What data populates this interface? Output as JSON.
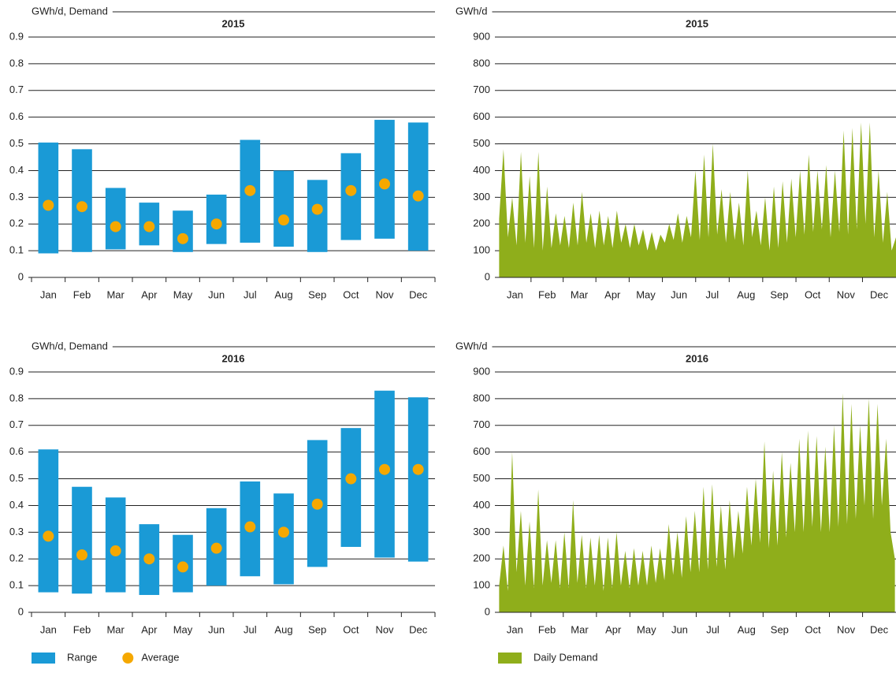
{
  "chart_data": [
    {
      "type": "range",
      "title": "2015",
      "ylabel": "GWh/d, Demand",
      "categories": [
        "Jan",
        "Feb",
        "Mar",
        "Apr",
        "May",
        "Jun",
        "Jul",
        "Aug",
        "Sep",
        "Oct",
        "Nov",
        "Dec"
      ],
      "series": [
        {
          "color": "#1a9ad6",
          "low": [
            0.09,
            0.095,
            0.105,
            0.12,
            0.095,
            0.125,
            0.13,
            0.115,
            0.095,
            0.14,
            0.145,
            0.1
          ],
          "high": [
            0.505,
            0.48,
            0.335,
            0.28,
            0.25,
            0.31,
            0.515,
            0.4,
            0.365,
            0.465,
            0.59,
            0.58
          ]
        },
        {
          "color": "#f5a800",
          "values": [
            0.27,
            0.265,
            0.19,
            0.19,
            0.145,
            0.2,
            0.325,
            0.215,
            0.255,
            0.325,
            0.35,
            0.305
          ]
        }
      ],
      "ylim": [
        0,
        0.9
      ],
      "yticks": [
        0,
        0.1,
        0.2,
        0.3,
        0.4,
        0.5,
        0.6,
        0.7,
        0.8,
        0.9
      ],
      "grid": true
    },
    {
      "type": "area",
      "title": "2015",
      "ylabel": "GWh/d",
      "x": [
        1,
        5,
        9,
        13,
        17,
        21,
        25,
        29,
        33,
        37,
        41,
        45,
        49,
        53,
        57,
        61,
        65,
        69,
        73,
        77,
        81,
        85,
        89,
        93,
        97,
        101,
        105,
        109,
        113,
        117,
        121,
        125,
        129,
        133,
        137,
        141,
        145,
        149,
        153,
        157,
        161,
        165,
        169,
        173,
        177,
        181,
        185,
        189,
        193,
        197,
        201,
        205,
        209,
        213,
        217,
        221,
        225,
        229,
        233,
        237,
        241,
        245,
        249,
        253,
        257,
        261,
        265,
        269,
        273,
        277,
        281,
        285,
        289,
        293,
        297,
        301,
        305,
        309,
        313,
        317,
        321,
        325,
        329,
        333,
        337,
        341,
        345,
        349,
        353,
        357,
        361,
        365
      ],
      "series": [
        {
          "color": "#8fae1b",
          "values": [
            220,
            480,
            150,
            300,
            120,
            470,
            130,
            380,
            110,
            470,
            100,
            340,
            110,
            240,
            120,
            230,
            110,
            280,
            120,
            320,
            130,
            240,
            110,
            250,
            120,
            230,
            110,
            250,
            130,
            200,
            110,
            200,
            120,
            180,
            100,
            170,
            100,
            160,
            130,
            200,
            140,
            240,
            130,
            230,
            150,
            400,
            140,
            460,
            150,
            500,
            160,
            330,
            130,
            320,
            140,
            280,
            120,
            400,
            150,
            250,
            120,
            300,
            100,
            340,
            110,
            360,
            130,
            370,
            150,
            400,
            160,
            460,
            170,
            400,
            180,
            420,
            150,
            400,
            170,
            550,
            160,
            560,
            180,
            580,
            200,
            580,
            150,
            400,
            130,
            320,
            100,
            150
          ]
        }
      ],
      "xlim": [
        0,
        365
      ],
      "xticks": [
        {
          "value": 15.5,
          "label": "Jan"
        },
        {
          "value": 45,
          "label": "Feb"
        },
        {
          "value": 74.5,
          "label": "Mar"
        },
        {
          "value": 105,
          "label": "Apr"
        },
        {
          "value": 135.5,
          "label": "May"
        },
        {
          "value": 166,
          "label": "Jun"
        },
        {
          "value": 196.5,
          "label": "Jul"
        },
        {
          "value": 227.5,
          "label": "Aug"
        },
        {
          "value": 258,
          "label": "Sep"
        },
        {
          "value": 288.5,
          "label": "Oct"
        },
        {
          "value": 319,
          "label": "Nov"
        },
        {
          "value": 349.5,
          "label": "Dec"
        }
      ],
      "ylim": [
        0,
        900
      ],
      "yticks": [
        0,
        100,
        200,
        300,
        400,
        500,
        600,
        700,
        800,
        900
      ],
      "grid": true
    },
    {
      "type": "range",
      "title": "2016",
      "ylabel": "GWh/d, Demand",
      "categories": [
        "Jan",
        "Feb",
        "Mar",
        "Apr",
        "May",
        "Jun",
        "Jul",
        "Aug",
        "Sep",
        "Oct",
        "Nov",
        "Dec"
      ],
      "series": [
        {
          "name": "Range",
          "color": "#1a9ad6",
          "low": [
            0.075,
            0.07,
            0.075,
            0.065,
            0.075,
            0.1,
            0.135,
            0.105,
            0.17,
            0.245,
            0.205,
            0.19
          ],
          "high": [
            0.61,
            0.47,
            0.43,
            0.33,
            0.29,
            0.39,
            0.49,
            0.445,
            0.645,
            0.69,
            0.83,
            0.805
          ]
        },
        {
          "name": "Average",
          "color": "#f5a800",
          "values": [
            0.285,
            0.215,
            0.23,
            0.2,
            0.17,
            0.24,
            0.32,
            0.3,
            0.405,
            0.5,
            0.535,
            0.535
          ]
        }
      ],
      "ylim": [
        0,
        0.9
      ],
      "yticks": [
        0,
        0.1,
        0.2,
        0.3,
        0.4,
        0.5,
        0.6,
        0.7,
        0.8,
        0.9
      ],
      "grid": true,
      "legend": "bottom-left"
    },
    {
      "type": "area",
      "title": "2016",
      "ylabel": "GWh/d",
      "x": [
        1,
        5,
        9,
        13,
        17,
        21,
        25,
        29,
        33,
        37,
        41,
        45,
        49,
        53,
        57,
        61,
        65,
        69,
        73,
        77,
        81,
        85,
        89,
        93,
        97,
        101,
        105,
        109,
        113,
        117,
        121,
        125,
        129,
        133,
        137,
        141,
        145,
        149,
        153,
        157,
        161,
        165,
        169,
        173,
        177,
        181,
        185,
        189,
        193,
        197,
        201,
        205,
        209,
        213,
        217,
        221,
        225,
        229,
        233,
        237,
        241,
        245,
        249,
        253,
        257,
        261,
        265,
        269,
        273,
        277,
        281,
        285,
        289,
        293,
        297,
        301,
        305,
        309,
        313,
        317,
        321,
        325,
        329,
        333,
        337,
        341,
        345,
        349,
        353,
        357,
        361,
        365
      ],
      "series": [
        {
          "name": "Daily Demand",
          "color": "#8fae1b",
          "values": [
            100,
            250,
            80,
            600,
            150,
            380,
            100,
            340,
            90,
            460,
            100,
            270,
            110,
            270,
            90,
            300,
            90,
            420,
            110,
            290,
            90,
            280,
            100,
            290,
            80,
            280,
            90,
            300,
            100,
            230,
            90,
            240,
            100,
            230,
            100,
            250,
            110,
            240,
            120,
            330,
            140,
            300,
            130,
            360,
            150,
            380,
            150,
            470,
            160,
            480,
            170,
            400,
            160,
            420,
            200,
            380,
            220,
            470,
            250,
            500,
            260,
            640,
            240,
            530,
            250,
            600,
            280,
            560,
            300,
            650,
            300,
            680,
            320,
            660,
            300,
            620,
            300,
            700,
            320,
            820,
            330,
            780,
            350,
            700,
            400,
            800,
            350,
            780,
            400,
            650,
            300,
            200
          ]
        }
      ],
      "xlim": [
        0,
        366
      ],
      "xticks": [
        {
          "value": 15.5,
          "label": "Jan"
        },
        {
          "value": 45,
          "label": "Feb"
        },
        {
          "value": 75,
          "label": "Mar"
        },
        {
          "value": 106,
          "label": "Apr"
        },
        {
          "value": 136.5,
          "label": "May"
        },
        {
          "value": 167,
          "label": "Jun"
        },
        {
          "value": 197.5,
          "label": "Jul"
        },
        {
          "value": 228.5,
          "label": "Aug"
        },
        {
          "value": 259,
          "label": "Sep"
        },
        {
          "value": 289.5,
          "label": "Oct"
        },
        {
          "value": 320,
          "label": "Nov"
        },
        {
          "value": 350.5,
          "label": "Dec"
        }
      ],
      "ylim": [
        0,
        900
      ],
      "yticks": [
        0,
        100,
        200,
        300,
        400,
        500,
        600,
        700,
        800,
        900
      ],
      "grid": true,
      "legend": "bottom-left"
    }
  ]
}
